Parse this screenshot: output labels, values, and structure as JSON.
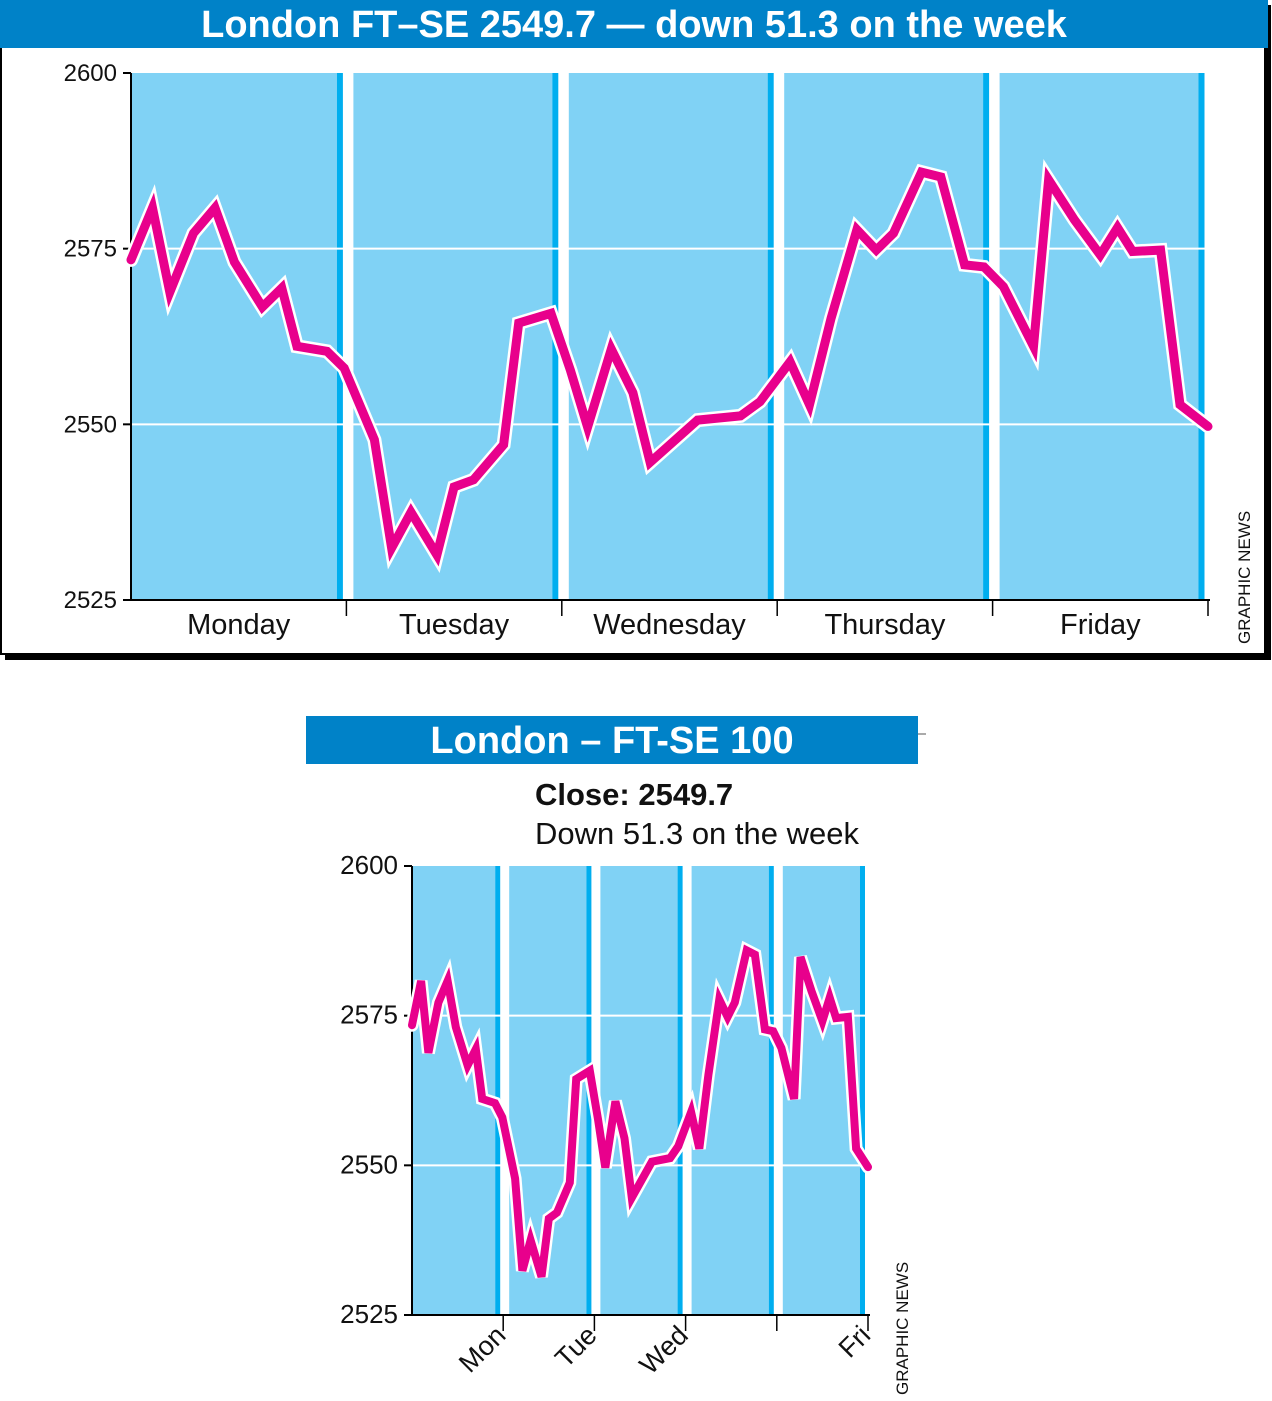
{
  "chart_data": [
    {
      "type": "line",
      "title": "London FT–SE 2549.7 — down 51.3 on the week",
      "credit": "GRAPHIC NEWS",
      "categories": [
        "Monday",
        "Tuesday",
        "Wednesday",
        "Thursday",
        "Friday"
      ],
      "ylim": [
        2525,
        2600
      ],
      "yticks": [
        "2525",
        "2550",
        "2575",
        "2600"
      ],
      "grid": true,
      "x_unit": "days elapsed (0-5)",
      "series": [
        {
          "name": "FT-SE 100",
          "color": "#e8008c",
          "x": [
            0,
            0.1,
            0.18,
            0.29,
            0.39,
            0.48,
            0.61,
            0.7,
            0.77,
            0.91,
            0.99,
            1.13,
            1.21,
            1.3,
            1.42,
            1.5,
            1.59,
            1.73,
            1.8,
            1.95,
            2.04,
            2.12,
            2.23,
            2.33,
            2.41,
            2.63,
            2.83,
            2.92,
            3.06,
            3.15,
            3.25,
            3.37,
            3.46,
            3.54,
            3.67,
            3.76,
            3.87,
            3.96,
            4.05,
            4.19,
            4.26,
            4.38,
            4.5,
            4.58,
            4.65,
            4.78,
            4.87,
            5.0
          ],
          "values": [
            2573.4,
            2580.8,
            2568.8,
            2577.2,
            2580.8,
            2573.1,
            2566.7,
            2569.4,
            2561.1,
            2560.4,
            2558.0,
            2547.8,
            2532.4,
            2537.5,
            2531.4,
            2541.1,
            2542.1,
            2547.1,
            2564.4,
            2565.8,
            2557.7,
            2549.6,
            2560.7,
            2554.5,
            2544.6,
            2550.6,
            2551.2,
            2553.2,
            2558.9,
            2552.8,
            2565.1,
            2577.7,
            2574.8,
            2577.2,
            2585.9,
            2585.2,
            2572.7,
            2572.4,
            2569.6,
            2561.1,
            2584.8,
            2579.1,
            2574.1,
            2578.0,
            2574.6,
            2574.8,
            2552.8,
            2549.7
          ]
        }
      ]
    },
    {
      "type": "line",
      "title": "London – FT-SE 100",
      "subtitle_bold": "Close: 2549.7",
      "subtitle": "Down 51.3 on the week",
      "credit": "GRAPHIC NEWS",
      "categories": [
        "Mon",
        "Tue",
        "Wed",
        "",
        "Fri"
      ],
      "ylim": [
        2525,
        2600
      ],
      "yticks": [
        "2525",
        "2550",
        "2575",
        "2600"
      ],
      "grid": true,
      "same_series_as": 0
    }
  ],
  "colors": {
    "title_bar": "#0082c8",
    "column": "#80d2f5",
    "divider": "#00aeef",
    "line": "#e8008c"
  }
}
